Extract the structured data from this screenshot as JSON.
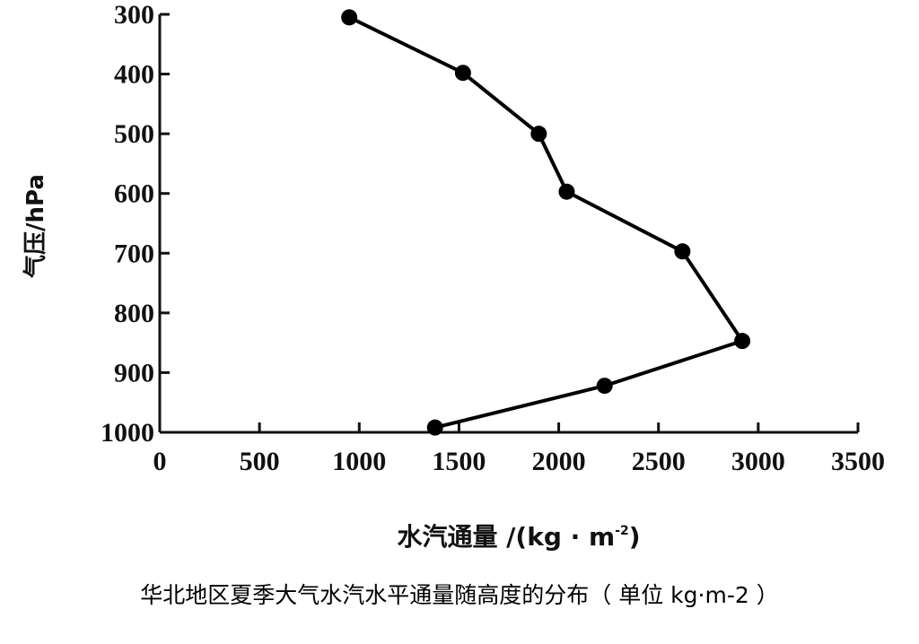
{
  "chart_data": {
    "type": "line",
    "xlabel": "水汽通量 /(kg · m",
    "xlabel_sup": "-2",
    "xlabel_end": ")",
    "ylabel": "气压/hPa",
    "xlim": [
      0,
      3500
    ],
    "ylim": [
      300,
      1000
    ],
    "y_inverted": true,
    "x_ticks": [
      0,
      500,
      1000,
      1500,
      2000,
      2500,
      3000,
      3500
    ],
    "y_ticks": [
      300,
      400,
      500,
      600,
      700,
      800,
      900,
      1000
    ],
    "grid": false,
    "series": [
      {
        "color": "#000000",
        "points": [
          {
            "x": 950,
            "y": 305
          },
          {
            "x": 1520,
            "y": 398
          },
          {
            "x": 1900,
            "y": 500
          },
          {
            "x": 2040,
            "y": 597
          },
          {
            "x": 2620,
            "y": 697
          },
          {
            "x": 2920,
            "y": 847
          },
          {
            "x": 2230,
            "y": 922
          },
          {
            "x": 1380,
            "y": 992
          }
        ]
      }
    ]
  },
  "caption": "华北地区夏季大气水汽水平通量随高度的分布（ 单位 kg·m-2 ）"
}
